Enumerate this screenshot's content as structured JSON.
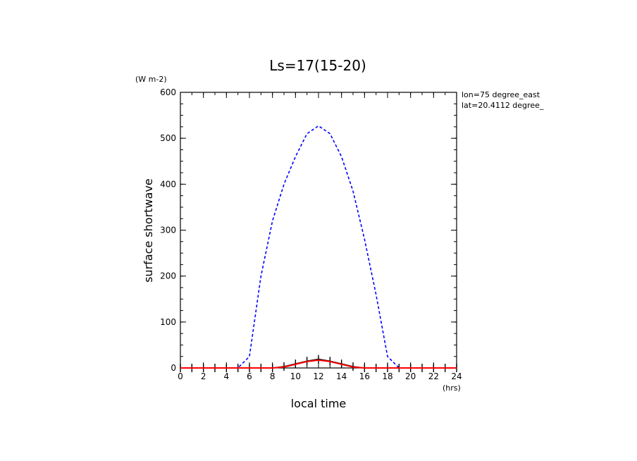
{
  "chart_data": {
    "type": "line",
    "title": "Ls=17(15-20)",
    "xlabel": "local time",
    "ylabel": "surface shortwave",
    "x_unit": "(hrs)",
    "y_unit": "(W m-2)",
    "annotations": [
      "lon=75 degree_east",
      "lat=20.4112 degree_"
    ],
    "xlim": [
      0,
      24
    ],
    "ylim": [
      0,
      600
    ],
    "x_ticks": [
      0,
      2,
      4,
      6,
      8,
      10,
      12,
      14,
      16,
      18,
      20,
      22,
      24
    ],
    "y_ticks": [
      0,
      100,
      200,
      300,
      400,
      500,
      600
    ],
    "grid": false,
    "x": [
      0,
      1,
      2,
      3,
      4,
      5,
      6,
      7,
      8,
      9,
      10,
      11,
      12,
      13,
      14,
      15,
      16,
      17,
      18,
      19,
      20,
      21,
      22,
      23,
      24
    ],
    "series": [
      {
        "color": "#0000ff",
        "style": "dashed",
        "values": [
          0,
          0,
          0,
          0,
          0,
          0,
          25,
          200,
          320,
          400,
          460,
          510,
          527,
          510,
          460,
          385,
          280,
          160,
          25,
          0,
          0,
          0,
          0,
          0,
          0
        ]
      },
      {
        "color": "#000000",
        "style": "solid-markers",
        "values": [
          0,
          0,
          0,
          0,
          0,
          0,
          0,
          0,
          0,
          3,
          9,
          15,
          19,
          15,
          9,
          3,
          0,
          0,
          0,
          0,
          0,
          0,
          0,
          0,
          0
        ]
      },
      {
        "color": "#ff0000",
        "style": "solid",
        "values": [
          0,
          0,
          0,
          0,
          0,
          0,
          0,
          0,
          0,
          2,
          8,
          14,
          17,
          14,
          8,
          2,
          0,
          0,
          0,
          0,
          0,
          0,
          0,
          0,
          0
        ]
      }
    ]
  }
}
